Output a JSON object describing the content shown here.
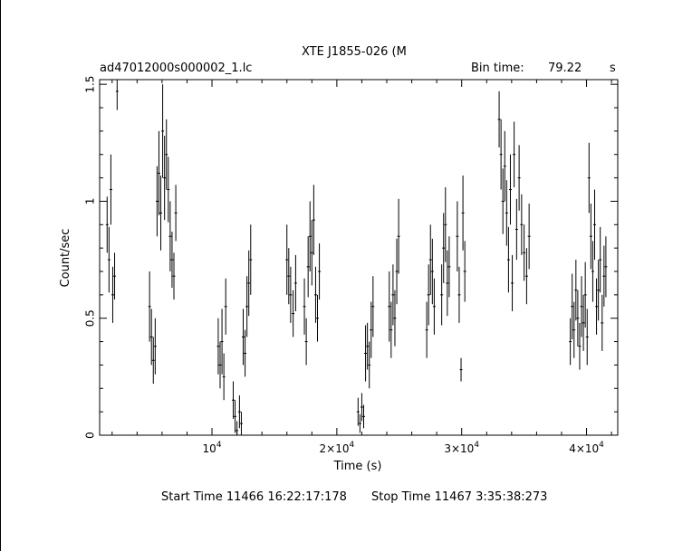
{
  "header": {
    "title": "XTE J1855-026 (M",
    "filename": "ad47012000s000002_1.lc",
    "bin_label": "Bin time:",
    "bin_value": "79.22",
    "bin_unit": "s"
  },
  "footer": {
    "start_label": "Start Time 11466 16:22:17:178",
    "stop_label": "Stop Time 11467  3:35:38:273"
  },
  "chart_data": {
    "type": "scatter",
    "title": "XTE J1855-026 (M",
    "xlabel": "Time (s)",
    "ylabel": "Count/sec",
    "xlim": [
      1000,
      42500
    ],
    "ylim": [
      0,
      1.52
    ],
    "x_ticks": [
      {
        "value": 10000,
        "base": "10",
        "exp": "4"
      },
      {
        "value": 20000,
        "base": "2×10",
        "exp": "4"
      },
      {
        "value": 30000,
        "base": "3×10",
        "exp": "4"
      },
      {
        "value": 40000,
        "base": "4×10",
        "exp": "4"
      }
    ],
    "y_ticks": [
      {
        "value": 0,
        "label": "0"
      },
      {
        "value": 0.5,
        "label": "0.5"
      },
      {
        "value": 1,
        "label": "1"
      },
      {
        "value": 1.5,
        "label": "1.5"
      }
    ],
    "grid": false,
    "points": [
      [
        1600,
        0.9,
        0.12
      ],
      [
        1750,
        0.75,
        0.14
      ],
      [
        1900,
        1.05,
        0.15
      ],
      [
        2050,
        0.6,
        0.12
      ],
      [
        2200,
        0.68,
        0.1
      ],
      [
        2400,
        1.47,
        0.08
      ],
      [
        5000,
        0.55,
        0.15
      ],
      [
        5150,
        0.42,
        0.12
      ],
      [
        5300,
        0.32,
        0.1
      ],
      [
        5450,
        0.38,
        0.12
      ],
      [
        5600,
        1.0,
        0.15
      ],
      [
        5750,
        1.12,
        0.18
      ],
      [
        5900,
        0.95,
        0.16
      ],
      [
        6050,
        1.3,
        0.2
      ],
      [
        6200,
        1.1,
        0.18
      ],
      [
        6350,
        1.2,
        0.15
      ],
      [
        6500,
        1.05,
        0.14
      ],
      [
        6650,
        0.85,
        0.15
      ],
      [
        6800,
        0.75,
        0.12
      ],
      [
        6950,
        0.68,
        0.1
      ],
      [
        7100,
        0.95,
        0.12
      ],
      [
        10500,
        0.38,
        0.12
      ],
      [
        10650,
        0.3,
        0.1
      ],
      [
        10800,
        0.4,
        0.14
      ],
      [
        10950,
        0.25,
        0.1
      ],
      [
        11100,
        0.55,
        0.12
      ],
      [
        11700,
        0.15,
        0.08
      ],
      [
        11850,
        0.08,
        0.07
      ],
      [
        12000,
        0.02,
        0.04
      ],
      [
        12200,
        0.1,
        0.07
      ],
      [
        12350,
        0.05,
        0.05
      ],
      [
        12500,
        0.42,
        0.12
      ],
      [
        12650,
        0.35,
        0.1
      ],
      [
        12800,
        0.55,
        0.13
      ],
      [
        12950,
        0.65,
        0.14
      ],
      [
        13100,
        0.75,
        0.15
      ],
      [
        16000,
        0.75,
        0.15
      ],
      [
        16150,
        0.68,
        0.12
      ],
      [
        16300,
        0.6,
        0.12
      ],
      [
        16500,
        0.52,
        0.1
      ],
      [
        16700,
        0.65,
        0.12
      ],
      [
        17400,
        0.55,
        0.12
      ],
      [
        17550,
        0.4,
        0.1
      ],
      [
        17700,
        0.72,
        0.13
      ],
      [
        17850,
        0.85,
        0.15
      ],
      [
        18000,
        0.78,
        0.14
      ],
      [
        18150,
        0.92,
        0.15
      ],
      [
        18300,
        0.6,
        0.12
      ],
      [
        18450,
        0.5,
        0.1
      ],
      [
        18600,
        0.7,
        0.12
      ],
      [
        21700,
        0.1,
        0.06
      ],
      [
        21850,
        0.05,
        0.04
      ],
      [
        22000,
        0.12,
        0.06
      ],
      [
        22150,
        0.08,
        0.05
      ],
      [
        22300,
        0.35,
        0.12
      ],
      [
        22450,
        0.38,
        0.1
      ],
      [
        22600,
        0.3,
        0.1
      ],
      [
        22750,
        0.45,
        0.12
      ],
      [
        22900,
        0.55,
        0.13
      ],
      [
        24200,
        0.55,
        0.15
      ],
      [
        24350,
        0.45,
        0.12
      ],
      [
        24500,
        0.6,
        0.13
      ],
      [
        24650,
        0.5,
        0.12
      ],
      [
        24800,
        0.7,
        0.14
      ],
      [
        24950,
        0.85,
        0.16
      ],
      [
        27200,
        0.45,
        0.12
      ],
      [
        27350,
        0.6,
        0.13
      ],
      [
        27500,
        0.75,
        0.15
      ],
      [
        27650,
        0.7,
        0.14
      ],
      [
        27800,
        0.55,
        0.12
      ],
      [
        28400,
        0.6,
        0.13
      ],
      [
        28550,
        0.8,
        0.15
      ],
      [
        28700,
        0.9,
        0.16
      ],
      [
        28850,
        0.65,
        0.14
      ],
      [
        29000,
        0.72,
        0.13
      ],
      [
        29650,
        0.85,
        0.15
      ],
      [
        29800,
        0.6,
        0.12
      ],
      [
        29950,
        0.28,
        0.05
      ],
      [
        30100,
        0.95,
        0.16
      ],
      [
        30250,
        0.7,
        0.13
      ],
      [
        33000,
        1.35,
        0.12
      ],
      [
        33150,
        1.2,
        0.15
      ],
      [
        33300,
        1.0,
        0.14
      ],
      [
        33450,
        1.15,
        0.15
      ],
      [
        33600,
        0.95,
        0.14
      ],
      [
        33750,
        0.75,
        0.14
      ],
      [
        33900,
        1.05,
        0.15
      ],
      [
        34050,
        0.65,
        0.12
      ],
      [
        34200,
        1.2,
        0.14
      ],
      [
        34400,
        0.88,
        0.13
      ],
      [
        34600,
        1.1,
        0.14
      ],
      [
        34800,
        0.9,
        0.13
      ],
      [
        35000,
        0.78,
        0.12
      ],
      [
        35200,
        0.68,
        0.12
      ],
      [
        35400,
        0.85,
        0.14
      ],
      [
        38700,
        0.4,
        0.1
      ],
      [
        38850,
        0.55,
        0.14
      ],
      [
        39000,
        0.45,
        0.12
      ],
      [
        39150,
        0.62,
        0.13
      ],
      [
        39300,
        0.5,
        0.12
      ],
      [
        39450,
        0.38,
        0.1
      ],
      [
        39600,
        0.55,
        0.13
      ],
      [
        39750,
        0.48,
        0.12
      ],
      [
        39900,
        0.6,
        0.14
      ],
      [
        40050,
        0.42,
        0.12
      ],
      [
        40200,
        1.1,
        0.15
      ],
      [
        40350,
        0.85,
        0.14
      ],
      [
        40500,
        0.7,
        0.13
      ],
      [
        40650,
        0.9,
        0.15
      ],
      [
        40800,
        0.55,
        0.12
      ],
      [
        40950,
        0.62,
        0.13
      ],
      [
        41100,
        0.75,
        0.14
      ],
      [
        41250,
        0.48,
        0.12
      ],
      [
        41400,
        0.68,
        0.13
      ],
      [
        41550,
        0.72,
        0.13
      ]
    ]
  }
}
